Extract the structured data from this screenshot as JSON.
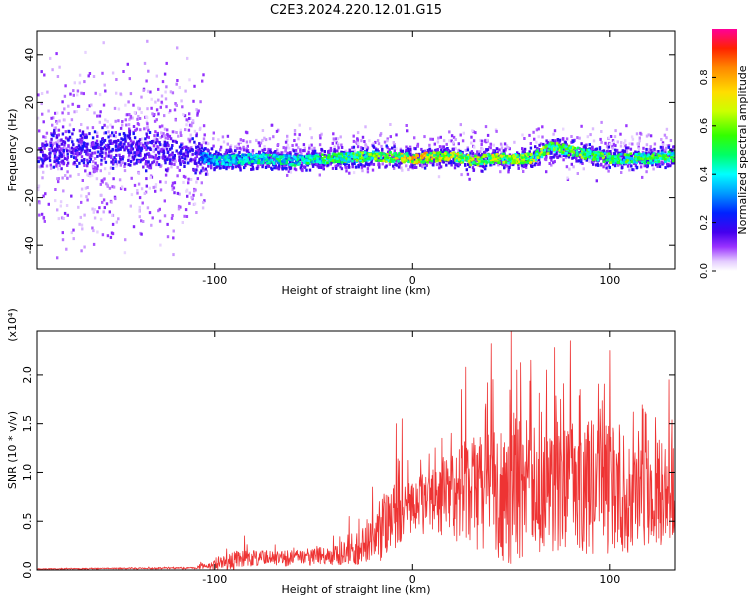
{
  "title": "C2E3.2024.220.12.01.G15",
  "chart_data": [
    {
      "type": "heatmap",
      "xlabel": "Height of straight line (km)",
      "ylabel": "Frequency (Hz)",
      "xlim": [
        -190,
        133
      ],
      "ylim": [
        -50,
        50
      ],
      "x_ticks": [
        -100,
        0,
        100
      ],
      "y_ticks": [
        -40,
        -20,
        0,
        20,
        40
      ],
      "colorbar": {
        "label": "Normalized spectral amplitude",
        "range": [
          0.0,
          1.0
        ],
        "ticks": [
          "0.0",
          "0.2",
          "0.4",
          "0.6",
          "0.8"
        ]
      },
      "ridge": {
        "x": [
          -190,
          -160,
          -130,
          -110,
          -100,
          -80,
          -60,
          -40,
          -20,
          0,
          20,
          30,
          40,
          60,
          70,
          80,
          100,
          120,
          133
        ],
        "y": [
          0,
          2,
          0,
          -2,
          -4,
          -3,
          -4,
          -3,
          -2,
          -3,
          -2,
          -4,
          -3,
          -3,
          2,
          0,
          -3,
          -3,
          -2
        ]
      },
      "intensity": {
        "x": [
          -190,
          -110,
          -100,
          -60,
          -20,
          0,
          20,
          60,
          100,
          133
        ],
        "y": [
          0.25,
          0.3,
          0.45,
          0.5,
          0.65,
          0.85,
          0.75,
          0.7,
          0.6,
          0.6
        ]
      }
    },
    {
      "type": "line",
      "xlabel": "Height of straight line (km)",
      "ylabel": "SNR (10 * v/v)",
      "scale_label": "(x10⁴)",
      "xlim": [
        -190,
        133
      ],
      "ylim": [
        0,
        2.45
      ],
      "x_ticks": [
        -100,
        0,
        100
      ],
      "y_ticks": [
        "0.0",
        "0.5",
        "1.0",
        "1.5",
        "2.0"
      ],
      "color": "#ee3333",
      "envelope": {
        "x": [
          -190,
          -110,
          -100,
          -90,
          -80,
          -60,
          -40,
          -30,
          -20,
          -15,
          -10,
          0,
          10,
          20,
          30,
          50,
          60,
          80,
          100,
          120,
          133
        ],
        "baseline": [
          0.01,
          0.02,
          0.05,
          0.1,
          0.12,
          0.12,
          0.15,
          0.2,
          0.3,
          0.45,
          0.55,
          0.65,
          0.7,
          0.75,
          0.8,
          0.85,
          0.85,
          0.85,
          0.85,
          0.8,
          0.8
        ],
        "amplitude": [
          0.005,
          0.01,
          0.05,
          0.1,
          0.08,
          0.08,
          0.1,
          0.15,
          0.25,
          0.35,
          0.35,
          0.3,
          0.35,
          0.45,
          0.6,
          0.8,
          0.7,
          0.7,
          0.7,
          0.6,
          0.5
        ]
      },
      "peaks": {
        "x": [
          -107,
          -85,
          -40,
          -32,
          -20,
          -8,
          -5,
          15,
          25,
          27,
          40,
          50,
          53,
          60,
          68,
          72,
          75,
          80,
          85,
          95,
          100,
          112,
          118,
          130
        ],
        "y": [
          0.08,
          0.35,
          0.35,
          0.55,
          0.85,
          1.5,
          1.55,
          1.35,
          1.85,
          2.08,
          2.32,
          2.45,
          2.05,
          2.15,
          2.05,
          2.28,
          1.75,
          2.35,
          1.85,
          1.65,
          2.25,
          1.62,
          1.62,
          1.95
        ]
      }
    }
  ]
}
